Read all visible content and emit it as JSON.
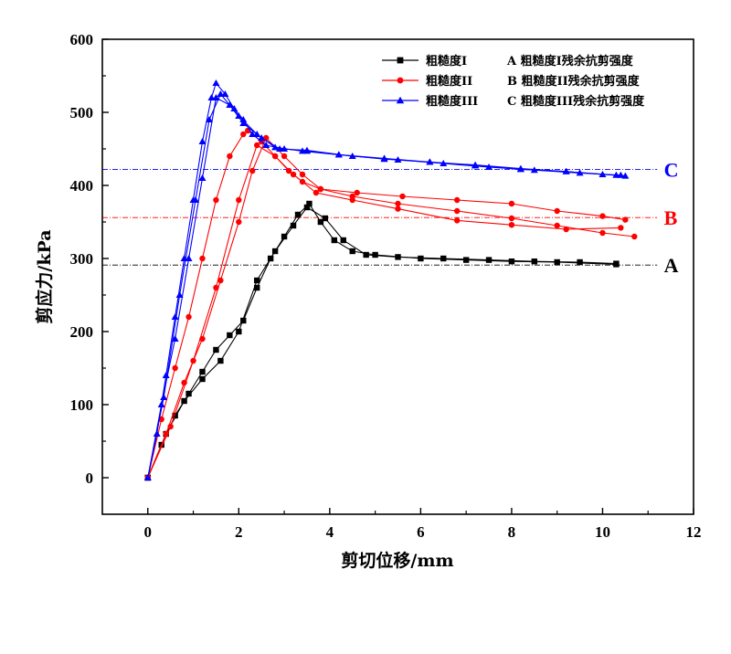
{
  "chart_data": {
    "type": "line",
    "title": "",
    "xlabel": "剪切位移/mm",
    "ylabel": "剪应力/kPa",
    "xlim": [
      -1,
      12
    ],
    "ylim": [
      -50,
      600
    ],
    "xticks": [
      0,
      2,
      4,
      6,
      8,
      10,
      12
    ],
    "yticks": [
      0,
      100,
      200,
      300,
      400,
      500,
      600
    ],
    "grid": false,
    "legend_position": "top-right",
    "series": [
      {
        "name": "粗糙度I",
        "color": "#000000",
        "marker": "square",
        "curves": [
          {
            "x": [
              0,
              0.3,
              0.6,
              0.9,
              1.2,
              1.5,
              1.8,
              2.1,
              2.4,
              2.7,
              3.0,
              3.3,
              3.55,
              3.8,
              4.1,
              4.5,
              5.0,
              6.0,
              7.0,
              8.0,
              9.0,
              10.3
            ],
            "y": [
              0,
              45,
              85,
              115,
              145,
              175,
              195,
              215,
              260,
              300,
              330,
              360,
              375,
              350,
              325,
              310,
              305,
              300,
              298,
              296,
              295,
              292
            ]
          },
          {
            "x": [
              0,
              0.4,
              0.8,
              1.2,
              1.6,
              2.0,
              2.4,
              2.8,
              3.2,
              3.5,
              3.9,
              4.3,
              4.8,
              5.5,
              6.5,
              7.5,
              8.5,
              9.5,
              10.3
            ],
            "y": [
              0,
              60,
              105,
              135,
              160,
              200,
              270,
              310,
              345,
              370,
              355,
              325,
              305,
              302,
              300,
              298,
              296,
              295,
              293
            ]
          }
        ]
      },
      {
        "name": "粗糙度II",
        "color": "#ff0000",
        "marker": "circle",
        "curves": [
          {
            "x": [
              0,
              0.3,
              0.6,
              0.9,
              1.2,
              1.5,
              1.8,
              2.1,
              2.2,
              2.5,
              2.8,
              3.1,
              3.4,
              3.8,
              4.5,
              5.5,
              6.8,
              8.0,
              9.0,
              10.0,
              10.7
            ],
            "y": [
              0,
              80,
              150,
              220,
              300,
              380,
              440,
              470,
              475,
              460,
              440,
              420,
              405,
              395,
              385,
              375,
              365,
              355,
              345,
              335,
              330
            ]
          },
          {
            "x": [
              0,
              0.4,
              0.8,
              1.2,
              1.6,
              2.0,
              2.3,
              2.6,
              3.0,
              3.4,
              3.8,
              4.6,
              5.6,
              6.8,
              8.0,
              9.0,
              10.0,
              10.5
            ],
            "y": [
              0,
              60,
              130,
              190,
              270,
              350,
              420,
              465,
              440,
              415,
              395,
              390,
              385,
              380,
              375,
              365,
              358,
              353
            ]
          },
          {
            "x": [
              0,
              0.5,
              1.0,
              1.5,
              2.0,
              2.4,
              2.8,
              3.2,
              3.7,
              4.5,
              5.5,
              6.8,
              8.0,
              9.2,
              10.4
            ],
            "y": [
              0,
              70,
              160,
              260,
              380,
              455,
              440,
              415,
              390,
              380,
              368,
              352,
              346,
              340,
              342
            ]
          }
        ]
      },
      {
        "name": "粗糙度III",
        "color": "#0000ff",
        "marker": "triangle",
        "curves": [
          {
            "x": [
              0,
              0.2,
              0.4,
              0.6,
              0.8,
              1.0,
              1.2,
              1.4,
              1.5,
              1.7,
              1.9,
              2.1,
              2.3,
              2.6,
              3.0,
              3.5,
              4.2,
              5.2,
              6.2,
              7.2,
              8.2,
              9.2,
              10.0,
              10.5
            ],
            "y": [
              0,
              60,
              140,
              220,
              300,
              380,
              460,
              520,
              540,
              525,
              505,
              490,
              470,
              455,
              450,
              447,
              442,
              437,
              432,
              427,
              422,
              419,
              415,
              413
            ]
          },
          {
            "x": [
              0,
              0.3,
              0.6,
              0.9,
              1.2,
              1.5,
              1.8,
              2.1,
              2.5,
              2.9,
              3.5,
              4.5,
              5.5,
              6.5,
              7.5,
              8.5,
              9.5,
              10.4
            ],
            "y": [
              0,
              100,
              190,
              300,
              410,
              520,
              510,
              485,
              465,
              450,
              448,
              440,
              435,
              430,
              425,
              421,
              417,
              414
            ]
          },
          {
            "x": [
              0,
              0.35,
              0.7,
              1.05,
              1.35,
              1.6,
              2.0,
              2.4,
              2.8,
              3.4,
              4.2,
              5.2,
              6.2,
              7.2,
              8.2,
              9.2,
              10.3
            ],
            "y": [
              0,
              110,
              250,
              380,
              490,
              525,
              495,
              470,
              452,
              447,
              442,
              436,
              432,
              428,
              423,
              419,
              414
            ]
          }
        ]
      }
    ],
    "reference_lines": [
      {
        "label": "A",
        "y": 291,
        "color": "#000000",
        "legend": "A 粗糙度I残余抗剪强度"
      },
      {
        "label": "B",
        "y": 356,
        "color": "#ff0000",
        "legend": "B 粗糙度II残余抗剪强度"
      },
      {
        "label": "C",
        "y": 422,
        "color": "#0000ff",
        "legend": "C 粗糙度III残余抗剪强度"
      }
    ]
  }
}
